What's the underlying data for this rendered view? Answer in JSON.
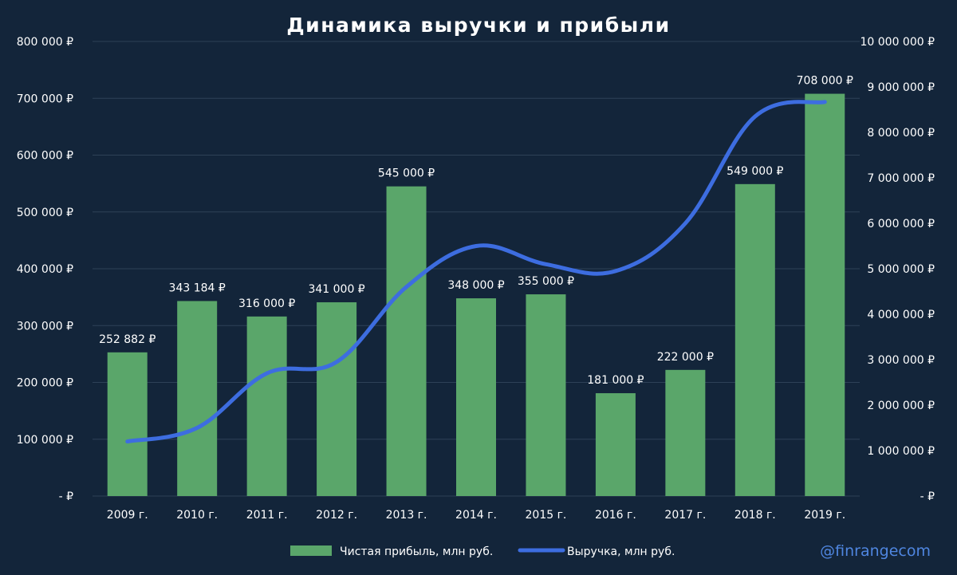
{
  "chart_data": {
    "type": "bar",
    "title": "Динамика выручки и прибыли",
    "categories": [
      "2009 г.",
      "2010 г.",
      "2011 г.",
      "2012 г.",
      "2013 г.",
      "2014 г.",
      "2015 г.",
      "2016 г.",
      "2017 г.",
      "2018 г.",
      "2019 г."
    ],
    "series": [
      {
        "name": "Чистая прибыль, млн руб.",
        "type": "bar",
        "axis": "left",
        "color": "#5aa66a",
        "values": [
          252882,
          343184,
          316000,
          341000,
          545000,
          348000,
          355000,
          181000,
          222000,
          549000,
          708000
        ],
        "data_labels": [
          "252 882 ₽",
          "343 184 ₽",
          "316 000 ₽",
          "341 000 ₽",
          "545 000 ₽",
          "348 000 ₽",
          "355 000 ₽",
          "181 000 ₽",
          "222 000 ₽",
          "549 000 ₽",
          "708 000 ₽"
        ]
      },
      {
        "name": "Выручка, млн руб.",
        "type": "line",
        "axis": "right",
        "color": "#3d6de0",
        "values": [
          1200000,
          1500000,
          2700000,
          2950000,
          4600000,
          5500000,
          5100000,
          4950000,
          6000000,
          8350000,
          8670000
        ]
      }
    ],
    "y_left": {
      "ylim": [
        0,
        800000
      ],
      "ticks": [
        0,
        100000,
        200000,
        300000,
        400000,
        500000,
        600000,
        700000,
        800000
      ],
      "tick_labels": [
        "-  ₽",
        "100 000 ₽",
        "200 000 ₽",
        "300 000 ₽",
        "400 000 ₽",
        "500 000 ₽",
        "600 000 ₽",
        "700 000 ₽",
        "800 000 ₽"
      ]
    },
    "y_right": {
      "ylim": [
        0,
        10000000
      ],
      "ticks": [
        0,
        1000000,
        2000000,
        3000000,
        4000000,
        5000000,
        6000000,
        7000000,
        8000000,
        9000000,
        10000000
      ],
      "tick_labels": [
        "-  ₽",
        "1 000 000 ₽",
        "2 000 000 ₽",
        "3 000 000 ₽",
        "4 000 000 ₽",
        "5 000 000 ₽",
        "6 000 000 ₽",
        "7 000 000 ₽",
        "8 000 000 ₽",
        "9 000 000 ₽",
        "10 000 000 ₽"
      ]
    },
    "grid": true,
    "legend": "bottom"
  },
  "watermark": "@finrangecom",
  "colors": {
    "background": "#13253a",
    "grid": "#2e4157",
    "bar": "#5aa66a",
    "line": "#3d6de0",
    "watermark": "#4f86e0"
  }
}
